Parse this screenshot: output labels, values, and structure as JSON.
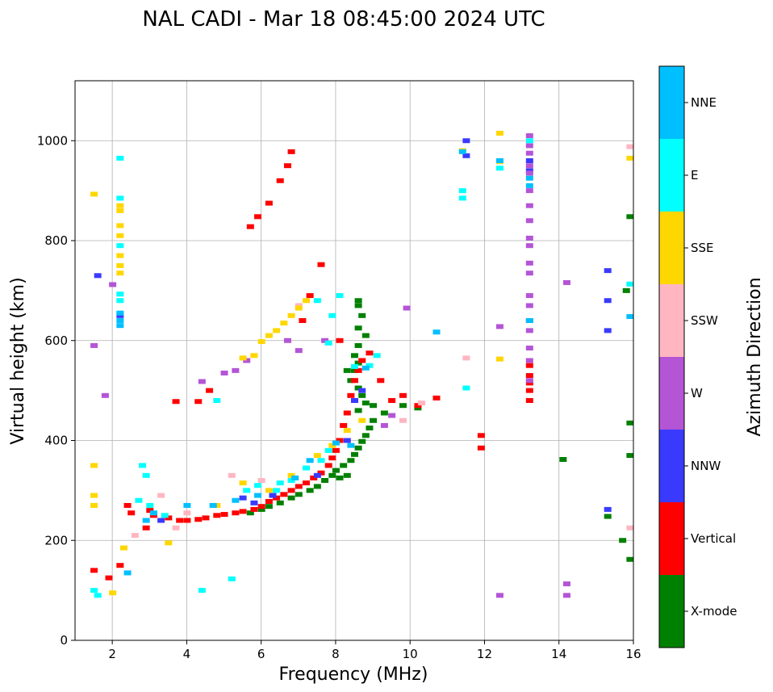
{
  "chart_data": {
    "type": "scatter",
    "title": "NAL CADI - Mar 18 08:45:00 2024 UTC",
    "xlabel": "Frequency (MHz)",
    "ylabel": "Virtual height (km)",
    "xlim": [
      1,
      16
    ],
    "ylim": [
      0,
      1120
    ],
    "xticks": [
      2,
      4,
      6,
      8,
      10,
      12,
      14,
      16
    ],
    "yticks": [
      0,
      200,
      400,
      600,
      800,
      1000
    ],
    "grid": true,
    "colorbar": {
      "title": "Azimuth Direction",
      "categories": [
        {
          "label": "X-mode",
          "color": "#008000"
        },
        {
          "label": "Vertical",
          "color": "#ff0000"
        },
        {
          "label": "NNW",
          "color": "#3a3aff"
        },
        {
          "label": "W",
          "color": "#b455d6"
        },
        {
          "label": "SSW",
          "color": "#ffb6c1"
        },
        {
          "label": "SSE",
          "color": "#ffd700"
        },
        {
          "label": "E",
          "color": "#00ffff"
        },
        {
          "label": "NNE",
          "color": "#00bfff"
        }
      ]
    },
    "series": [
      {
        "name": "X-mode",
        "points": [
          [
            5.7,
            255
          ],
          [
            6.0,
            262
          ],
          [
            6.2,
            268
          ],
          [
            6.5,
            275
          ],
          [
            6.8,
            285
          ],
          [
            7.0,
            292
          ],
          [
            7.3,
            300
          ],
          [
            7.5,
            308
          ],
          [
            7.7,
            320
          ],
          [
            7.9,
            330
          ],
          [
            8.0,
            340
          ],
          [
            8.2,
            350
          ],
          [
            8.4,
            360
          ],
          [
            8.5,
            372
          ],
          [
            8.6,
            385
          ],
          [
            8.7,
            398
          ],
          [
            8.8,
            410
          ],
          [
            8.9,
            425
          ],
          [
            9.0,
            440
          ],
          [
            8.6,
            460
          ],
          [
            8.8,
            475
          ],
          [
            8.7,
            490
          ],
          [
            8.6,
            505
          ],
          [
            8.4,
            520
          ],
          [
            8.5,
            540
          ],
          [
            8.6,
            555
          ],
          [
            8.5,
            570
          ],
          [
            8.6,
            590
          ],
          [
            8.8,
            610
          ],
          [
            8.6,
            625
          ],
          [
            8.7,
            650
          ],
          [
            8.6,
            670
          ],
          [
            8.6,
            680
          ],
          [
            8.3,
            540
          ],
          [
            9.0,
            470
          ],
          [
            9.3,
            455
          ],
          [
            9.8,
            470
          ],
          [
            10.2,
            465
          ],
          [
            15.7,
            200
          ],
          [
            15.9,
            162
          ],
          [
            15.9,
            370
          ],
          [
            15.9,
            435
          ],
          [
            15.9,
            848
          ],
          [
            15.8,
            700
          ],
          [
            14.1,
            362
          ],
          [
            15.3,
            248
          ],
          [
            8.1,
            325
          ],
          [
            8.3,
            330
          ]
        ]
      },
      {
        "name": "Vertical",
        "points": [
          [
            1.5,
            140
          ],
          [
            1.9,
            125
          ],
          [
            2.2,
            150
          ],
          [
            2.4,
            270
          ],
          [
            2.5,
            255
          ],
          [
            3.0,
            260
          ],
          [
            3.5,
            245
          ],
          [
            3.8,
            240
          ],
          [
            4.0,
            240
          ],
          [
            4.3,
            242
          ],
          [
            4.5,
            245
          ],
          [
            4.8,
            250
          ],
          [
            5.0,
            252
          ],
          [
            5.3,
            255
          ],
          [
            5.5,
            258
          ],
          [
            5.8,
            262
          ],
          [
            6.0,
            268
          ],
          [
            6.2,
            278
          ],
          [
            6.4,
            285
          ],
          [
            6.6,
            292
          ],
          [
            6.8,
            300
          ],
          [
            7.0,
            308
          ],
          [
            7.2,
            315
          ],
          [
            7.4,
            325
          ],
          [
            7.6,
            335
          ],
          [
            7.8,
            350
          ],
          [
            7.9,
            365
          ],
          [
            8.0,
            380
          ],
          [
            8.1,
            400
          ],
          [
            8.2,
            430
          ],
          [
            8.3,
            455
          ],
          [
            8.4,
            490
          ],
          [
            8.5,
            520
          ],
          [
            8.6,
            540
          ],
          [
            8.7,
            560
          ],
          [
            8.9,
            575
          ],
          [
            9.2,
            520
          ],
          [
            9.5,
            480
          ],
          [
            9.8,
            490
          ],
          [
            10.2,
            470
          ],
          [
            10.7,
            485
          ],
          [
            11.9,
            410
          ],
          [
            11.9,
            385
          ],
          [
            13.2,
            480
          ],
          [
            13.2,
            500
          ],
          [
            13.2,
            515
          ],
          [
            13.2,
            530
          ],
          [
            13.2,
            550
          ],
          [
            6.5,
            920
          ],
          [
            6.2,
            875
          ],
          [
            5.9,
            848
          ],
          [
            5.7,
            828
          ],
          [
            6.8,
            978
          ],
          [
            6.7,
            950
          ],
          [
            7.6,
            752
          ],
          [
            7.3,
            690
          ],
          [
            7.1,
            640
          ],
          [
            4.3,
            478
          ],
          [
            4.6,
            500
          ],
          [
            3.7,
            478
          ],
          [
            8.1,
            600
          ],
          [
            2.9,
            225
          ],
          [
            3.1,
            250
          ]
        ]
      },
      {
        "name": "NNW",
        "points": [
          [
            15.3,
            740
          ],
          [
            15.3,
            680
          ],
          [
            15.3,
            620
          ],
          [
            15.3,
            262
          ],
          [
            13.2,
            960
          ],
          [
            13.2,
            940
          ],
          [
            11.5,
            970
          ],
          [
            11.5,
            1000
          ],
          [
            8.5,
            480
          ],
          [
            8.7,
            500
          ],
          [
            5.5,
            285
          ],
          [
            5.8,
            275
          ],
          [
            6.3,
            290
          ],
          [
            7.5,
            330
          ],
          [
            8.3,
            400
          ],
          [
            2.2,
            650
          ],
          [
            1.6,
            730
          ],
          [
            3.3,
            240
          ]
        ]
      },
      {
        "name": "W",
        "points": [
          [
            13.2,
            1010
          ],
          [
            13.2,
            990
          ],
          [
            13.2,
            975
          ],
          [
            13.2,
            950
          ],
          [
            13.2,
            935
          ],
          [
            13.2,
            900
          ],
          [
            13.2,
            870
          ],
          [
            13.2,
            840
          ],
          [
            13.2,
            805
          ],
          [
            13.2,
            790
          ],
          [
            13.2,
            755
          ],
          [
            13.2,
            735
          ],
          [
            13.2,
            690
          ],
          [
            13.2,
            670
          ],
          [
            13.2,
            640
          ],
          [
            13.2,
            620
          ],
          [
            13.2,
            585
          ],
          [
            13.2,
            560
          ],
          [
            13.2,
            520
          ],
          [
            14.2,
            716
          ],
          [
            14.2,
            113
          ],
          [
            14.2,
            90
          ],
          [
            12.4,
            90
          ],
          [
            12.4,
            628
          ],
          [
            4.4,
            518
          ],
          [
            5.0,
            535
          ],
          [
            5.3,
            540
          ],
          [
            5.6,
            560
          ],
          [
            7.0,
            580
          ],
          [
            9.3,
            430
          ],
          [
            9.5,
            450
          ],
          [
            9.9,
            665
          ],
          [
            1.5,
            590
          ],
          [
            1.8,
            490
          ],
          [
            2.0,
            712
          ],
          [
            7.7,
            600
          ],
          [
            6.7,
            600
          ]
        ]
      },
      {
        "name": "SSW",
        "points": [
          [
            15.9,
            988
          ],
          [
            15.9,
            225
          ],
          [
            11.5,
            565
          ],
          [
            2.6,
            210
          ],
          [
            3.3,
            290
          ],
          [
            4.0,
            255
          ],
          [
            5.2,
            330
          ],
          [
            6.0,
            320
          ],
          [
            9.8,
            440
          ],
          [
            10.3,
            475
          ],
          [
            7.0,
            670
          ],
          [
            3.7,
            225
          ]
        ]
      },
      {
        "name": "SSE",
        "points": [
          [
            1.5,
            893
          ],
          [
            1.5,
            350
          ],
          [
            1.5,
            290
          ],
          [
            1.5,
            270
          ],
          [
            2.2,
            870
          ],
          [
            2.2,
            860
          ],
          [
            2.2,
            830
          ],
          [
            2.2,
            810
          ],
          [
            2.2,
            770
          ],
          [
            2.2,
            750
          ],
          [
            2.2,
            735
          ],
          [
            2.3,
            185
          ],
          [
            2.0,
            95
          ],
          [
            6.0,
            598
          ],
          [
            6.2,
            610
          ],
          [
            6.4,
            620
          ],
          [
            6.6,
            635
          ],
          [
            6.8,
            650
          ],
          [
            7.0,
            665
          ],
          [
            7.2,
            680
          ],
          [
            5.5,
            565
          ],
          [
            5.8,
            570
          ],
          [
            12.4,
            1015
          ],
          [
            12.4,
            958
          ],
          [
            12.4,
            563
          ],
          [
            11.4,
            980
          ],
          [
            15.9,
            965
          ],
          [
            3.5,
            195
          ],
          [
            5.5,
            315
          ],
          [
            6.8,
            330
          ],
          [
            7.5,
            370
          ],
          [
            7.9,
            390
          ],
          [
            8.3,
            420
          ],
          [
            8.7,
            440
          ],
          [
            4.8,
            270
          ],
          [
            6.2,
            300
          ]
        ]
      },
      {
        "name": "E",
        "points": [
          [
            1.6,
            90
          ],
          [
            1.5,
            100
          ],
          [
            2.2,
            965
          ],
          [
            2.2,
            885
          ],
          [
            2.2,
            790
          ],
          [
            2.2,
            693
          ],
          [
            2.2,
            680
          ],
          [
            2.8,
            350
          ],
          [
            2.9,
            330
          ],
          [
            2.7,
            280
          ],
          [
            3.0,
            270
          ],
          [
            3.4,
            250
          ],
          [
            4.4,
            100
          ],
          [
            5.2,
            123
          ],
          [
            5.6,
            300
          ],
          [
            5.9,
            310
          ],
          [
            6.4,
            300
          ],
          [
            6.8,
            320
          ],
          [
            7.2,
            345
          ],
          [
            7.6,
            360
          ],
          [
            7.8,
            380
          ],
          [
            7.8,
            595
          ],
          [
            7.9,
            650
          ],
          [
            7.5,
            680
          ],
          [
            8.1,
            690
          ],
          [
            8.5,
            548
          ],
          [
            8.9,
            550
          ],
          [
            9.1,
            570
          ],
          [
            11.4,
            885
          ],
          [
            11.4,
            900
          ],
          [
            12.4,
            945
          ],
          [
            13.2,
            1000
          ],
          [
            15.9,
            713
          ],
          [
            11.5,
            505
          ],
          [
            4.8,
            480
          ],
          [
            6.5,
            315
          ]
        ]
      },
      {
        "name": "NNE",
        "points": [
          [
            2.2,
            630
          ],
          [
            2.2,
            640
          ],
          [
            2.2,
            655
          ],
          [
            2.4,
            135
          ],
          [
            2.9,
            240
          ],
          [
            3.1,
            255
          ],
          [
            4.7,
            270
          ],
          [
            5.3,
            280
          ],
          [
            5.9,
            290
          ],
          [
            6.9,
            325
          ],
          [
            7.3,
            360
          ],
          [
            8.0,
            395
          ],
          [
            8.4,
            390
          ],
          [
            8.8,
            545
          ],
          [
            13.2,
            925
          ],
          [
            13.2,
            910
          ],
          [
            13.2,
            640
          ],
          [
            10.7,
            617
          ],
          [
            15.9,
            648
          ],
          [
            11.4,
            978
          ],
          [
            12.4,
            960
          ],
          [
            4.0,
            270
          ]
        ]
      }
    ]
  }
}
